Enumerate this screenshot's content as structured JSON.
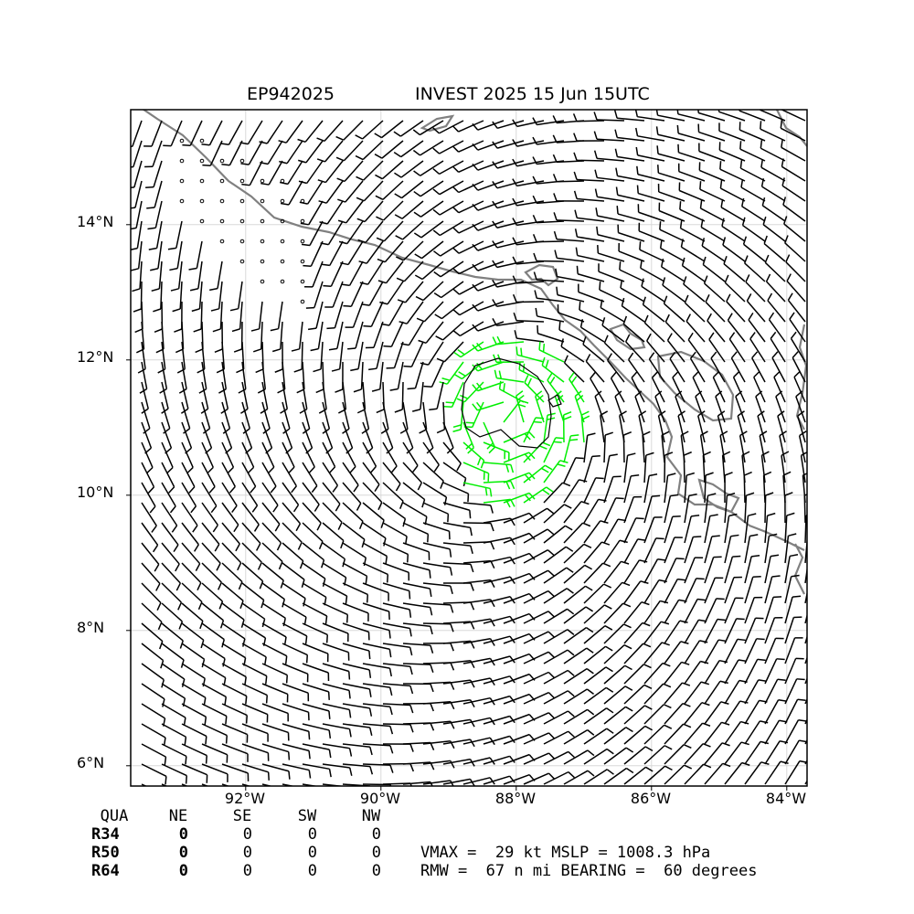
{
  "title": {
    "storm_id": "EP942025",
    "description": "INVEST 2025 15 Jun 15UTC"
  },
  "map": {
    "lon_range": [
      -93.7,
      -83.7
    ],
    "lat_range": [
      5.7,
      15.7
    ],
    "lon_ticks": [
      {
        "value": -92,
        "label": "92°W"
      },
      {
        "value": -90,
        "label": "90°W"
      },
      {
        "value": -88,
        "label": "88°W"
      },
      {
        "value": -86,
        "label": "86°W"
      },
      {
        "value": -84,
        "label": "84°W"
      }
    ],
    "lat_ticks": [
      {
        "value": 14,
        "label": "14°N"
      },
      {
        "value": 12,
        "label": "12°N"
      },
      {
        "value": 10,
        "label": "10°N"
      },
      {
        "value": 8,
        "label": "8°N"
      },
      {
        "value": 6,
        "label": "6°N"
      }
    ],
    "grid": true,
    "center": {
      "lon": -88.2,
      "lat": 11.1
    },
    "colors": {
      "barb": "#000000",
      "barb_strong": "#00ee00",
      "coast": "#808080",
      "grid": "#d8d8d8"
    }
  },
  "wind_radii": {
    "header": [
      "QUA",
      "NE",
      "SE",
      "SW",
      "NW"
    ],
    "rows": [
      {
        "label": "R34",
        "values": [
          "0",
          "0",
          "0",
          "0"
        ]
      },
      {
        "label": "R50",
        "values": [
          "0",
          "0",
          "0",
          "0"
        ]
      },
      {
        "label": "R64",
        "values": [
          "0",
          "0",
          "0",
          "0"
        ]
      }
    ]
  },
  "summary": {
    "line1": "VMAX =  29 kt MSLP = 1008.3 hPa",
    "line2": "RMW =  67 n mi BEARING =  60 degrees"
  }
}
